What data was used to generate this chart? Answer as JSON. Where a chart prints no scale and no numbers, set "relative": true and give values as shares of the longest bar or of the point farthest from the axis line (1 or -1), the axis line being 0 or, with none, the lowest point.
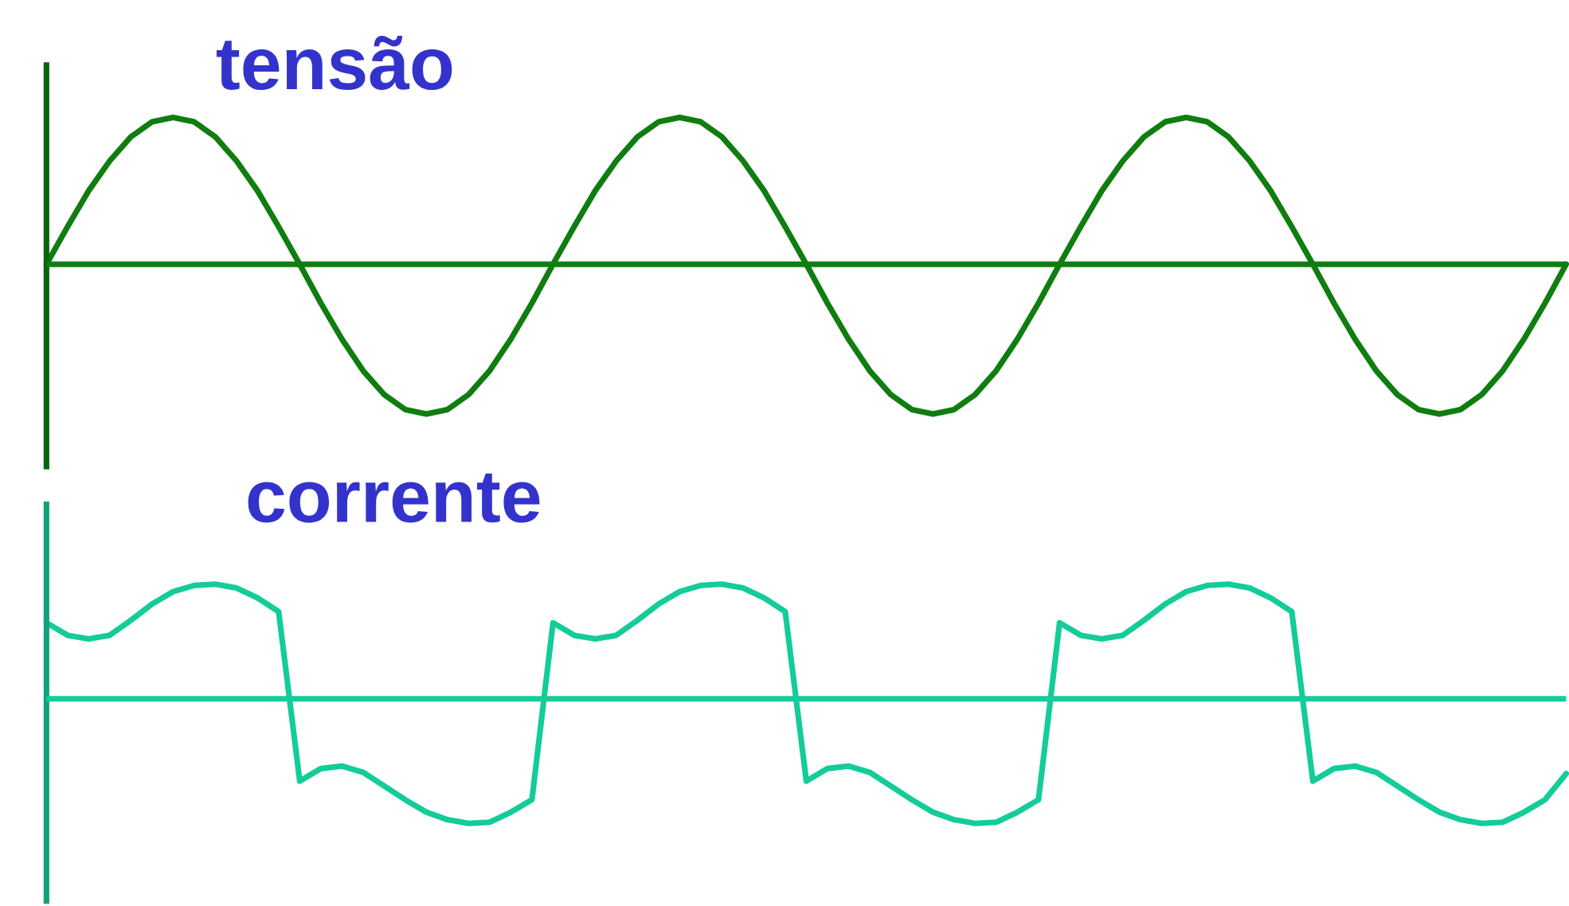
{
  "chart_data": [
    {
      "type": "line",
      "title": "tensão",
      "relative": true,
      "ref_lines": [
        {
          "axis": "y",
          "value": 0,
          "color": "#0f7d0f"
        }
      ],
      "categories": [
        null,
        null,
        null,
        null,
        null,
        null,
        null,
        null,
        null,
        null,
        null,
        null,
        null,
        null,
        null,
        null,
        null,
        null,
        null,
        null,
        null,
        null,
        null,
        null,
        null,
        null,
        null,
        null,
        null,
        null,
        null,
        null,
        null,
        null,
        null,
        null,
        null,
        null,
        null,
        null,
        null,
        null,
        null,
        null,
        null,
        null,
        null,
        null,
        null,
        null,
        null,
        null,
        null,
        null,
        null,
        null,
        null,
        null,
        null,
        null,
        null,
        null,
        null,
        null,
        null,
        null,
        null,
        null,
        null,
        null,
        null,
        null,
        null
      ],
      "series": [
        {
          "color": "#0f7d0f",
          "values": [
            0,
            0.25,
            0.49,
            0.69,
            0.85,
            0.95,
            0.98,
            0.95,
            0.85,
            0.69,
            0.49,
            0.25,
            0,
            -0.26,
            -0.5,
            -0.71,
            -0.87,
            -0.97,
            -1,
            -0.97,
            -0.87,
            -0.71,
            -0.5,
            -0.26,
            0,
            0.25,
            0.49,
            0.69,
            0.85,
            0.95,
            0.98,
            0.95,
            0.85,
            0.69,
            0.49,
            0.25,
            0,
            -0.26,
            -0.5,
            -0.71,
            -0.87,
            -0.97,
            -1,
            -0.97,
            -0.87,
            -0.71,
            -0.5,
            -0.26,
            0,
            0.25,
            0.49,
            0.69,
            0.85,
            0.95,
            0.98,
            0.95,
            0.85,
            0.69,
            0.49,
            0.25,
            0,
            -0.26,
            -0.5,
            -0.71,
            -0.87,
            -0.97,
            -1,
            -0.97,
            -0.87,
            -0.71,
            -0.5,
            -0.26,
            0
          ]
        }
      ]
    },
    {
      "type": "line",
      "title": "corrente",
      "relative": true,
      "ref_lines": [
        {
          "axis": "y",
          "value": 0,
          "color": "#14cc99"
        }
      ],
      "categories": [
        null,
        null,
        null,
        null,
        null,
        null,
        null,
        null,
        null,
        null,
        null,
        null,
        null,
        null,
        null,
        null,
        null,
        null,
        null,
        null,
        null,
        null,
        null,
        null,
        null,
        null,
        null,
        null,
        null,
        null,
        null,
        null,
        null,
        null,
        null,
        null,
        null,
        null,
        null,
        null,
        null,
        null,
        null,
        null,
        null,
        null,
        null,
        null,
        null,
        null,
        null,
        null,
        null,
        null,
        null,
        null,
        null,
        null,
        null,
        null,
        null,
        null,
        null,
        null,
        null,
        null,
        null,
        null,
        null,
        null,
        null,
        null,
        null
      ],
      "series": [
        {
          "color": "#14cc99",
          "values": [
            0.61,
            0.51,
            0.48,
            0.51,
            0.63,
            0.76,
            0.86,
            0.91,
            0.92,
            0.89,
            0.81,
            0.7,
            -0.66,
            -0.56,
            -0.54,
            -0.59,
            -0.7,
            -0.81,
            -0.91,
            -0.97,
            -1,
            -0.99,
            -0.91,
            -0.81,
            0.61,
            0.51,
            0.48,
            0.51,
            0.63,
            0.76,
            0.86,
            0.91,
            0.92,
            0.89,
            0.81,
            0.7,
            -0.66,
            -0.56,
            -0.54,
            -0.59,
            -0.7,
            -0.81,
            -0.91,
            -0.97,
            -1,
            -0.99,
            -0.91,
            -0.81,
            0.61,
            0.51,
            0.48,
            0.51,
            0.63,
            0.76,
            0.86,
            0.91,
            0.92,
            0.89,
            0.81,
            0.7,
            -0.66,
            -0.56,
            -0.54,
            -0.59,
            -0.7,
            -0.81,
            -0.91,
            -0.97,
            -1,
            -0.99,
            -0.91,
            -0.81,
            -0.6
          ]
        }
      ]
    }
  ]
}
